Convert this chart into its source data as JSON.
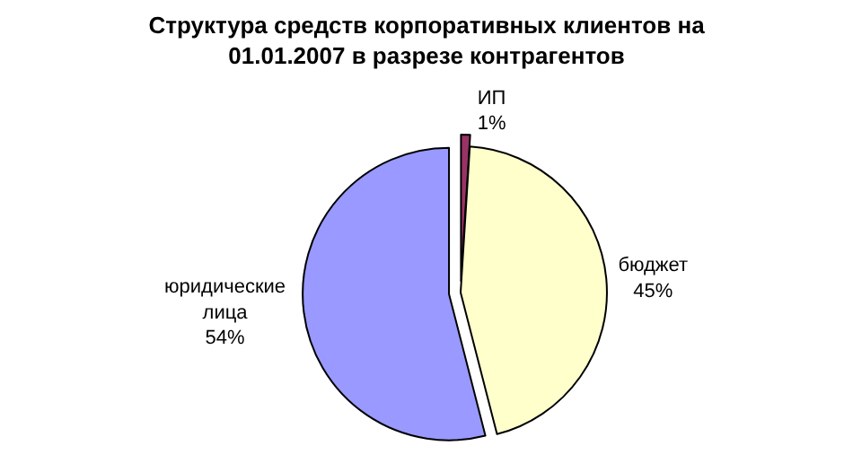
{
  "chart_data": {
    "type": "pie",
    "title": "Структура средств корпоративных клиентов на\n01.01.2007 в разрезе контрагентов",
    "categories": [
      "ИП",
      "бюджет",
      "юридические\nлица"
    ],
    "values": [
      1,
      45,
      54
    ],
    "value_labels": [
      "1%",
      "45%",
      "54%"
    ],
    "colors": [
      "#993366",
      "#ffffcc",
      "#9999ff"
    ],
    "legend": false
  }
}
